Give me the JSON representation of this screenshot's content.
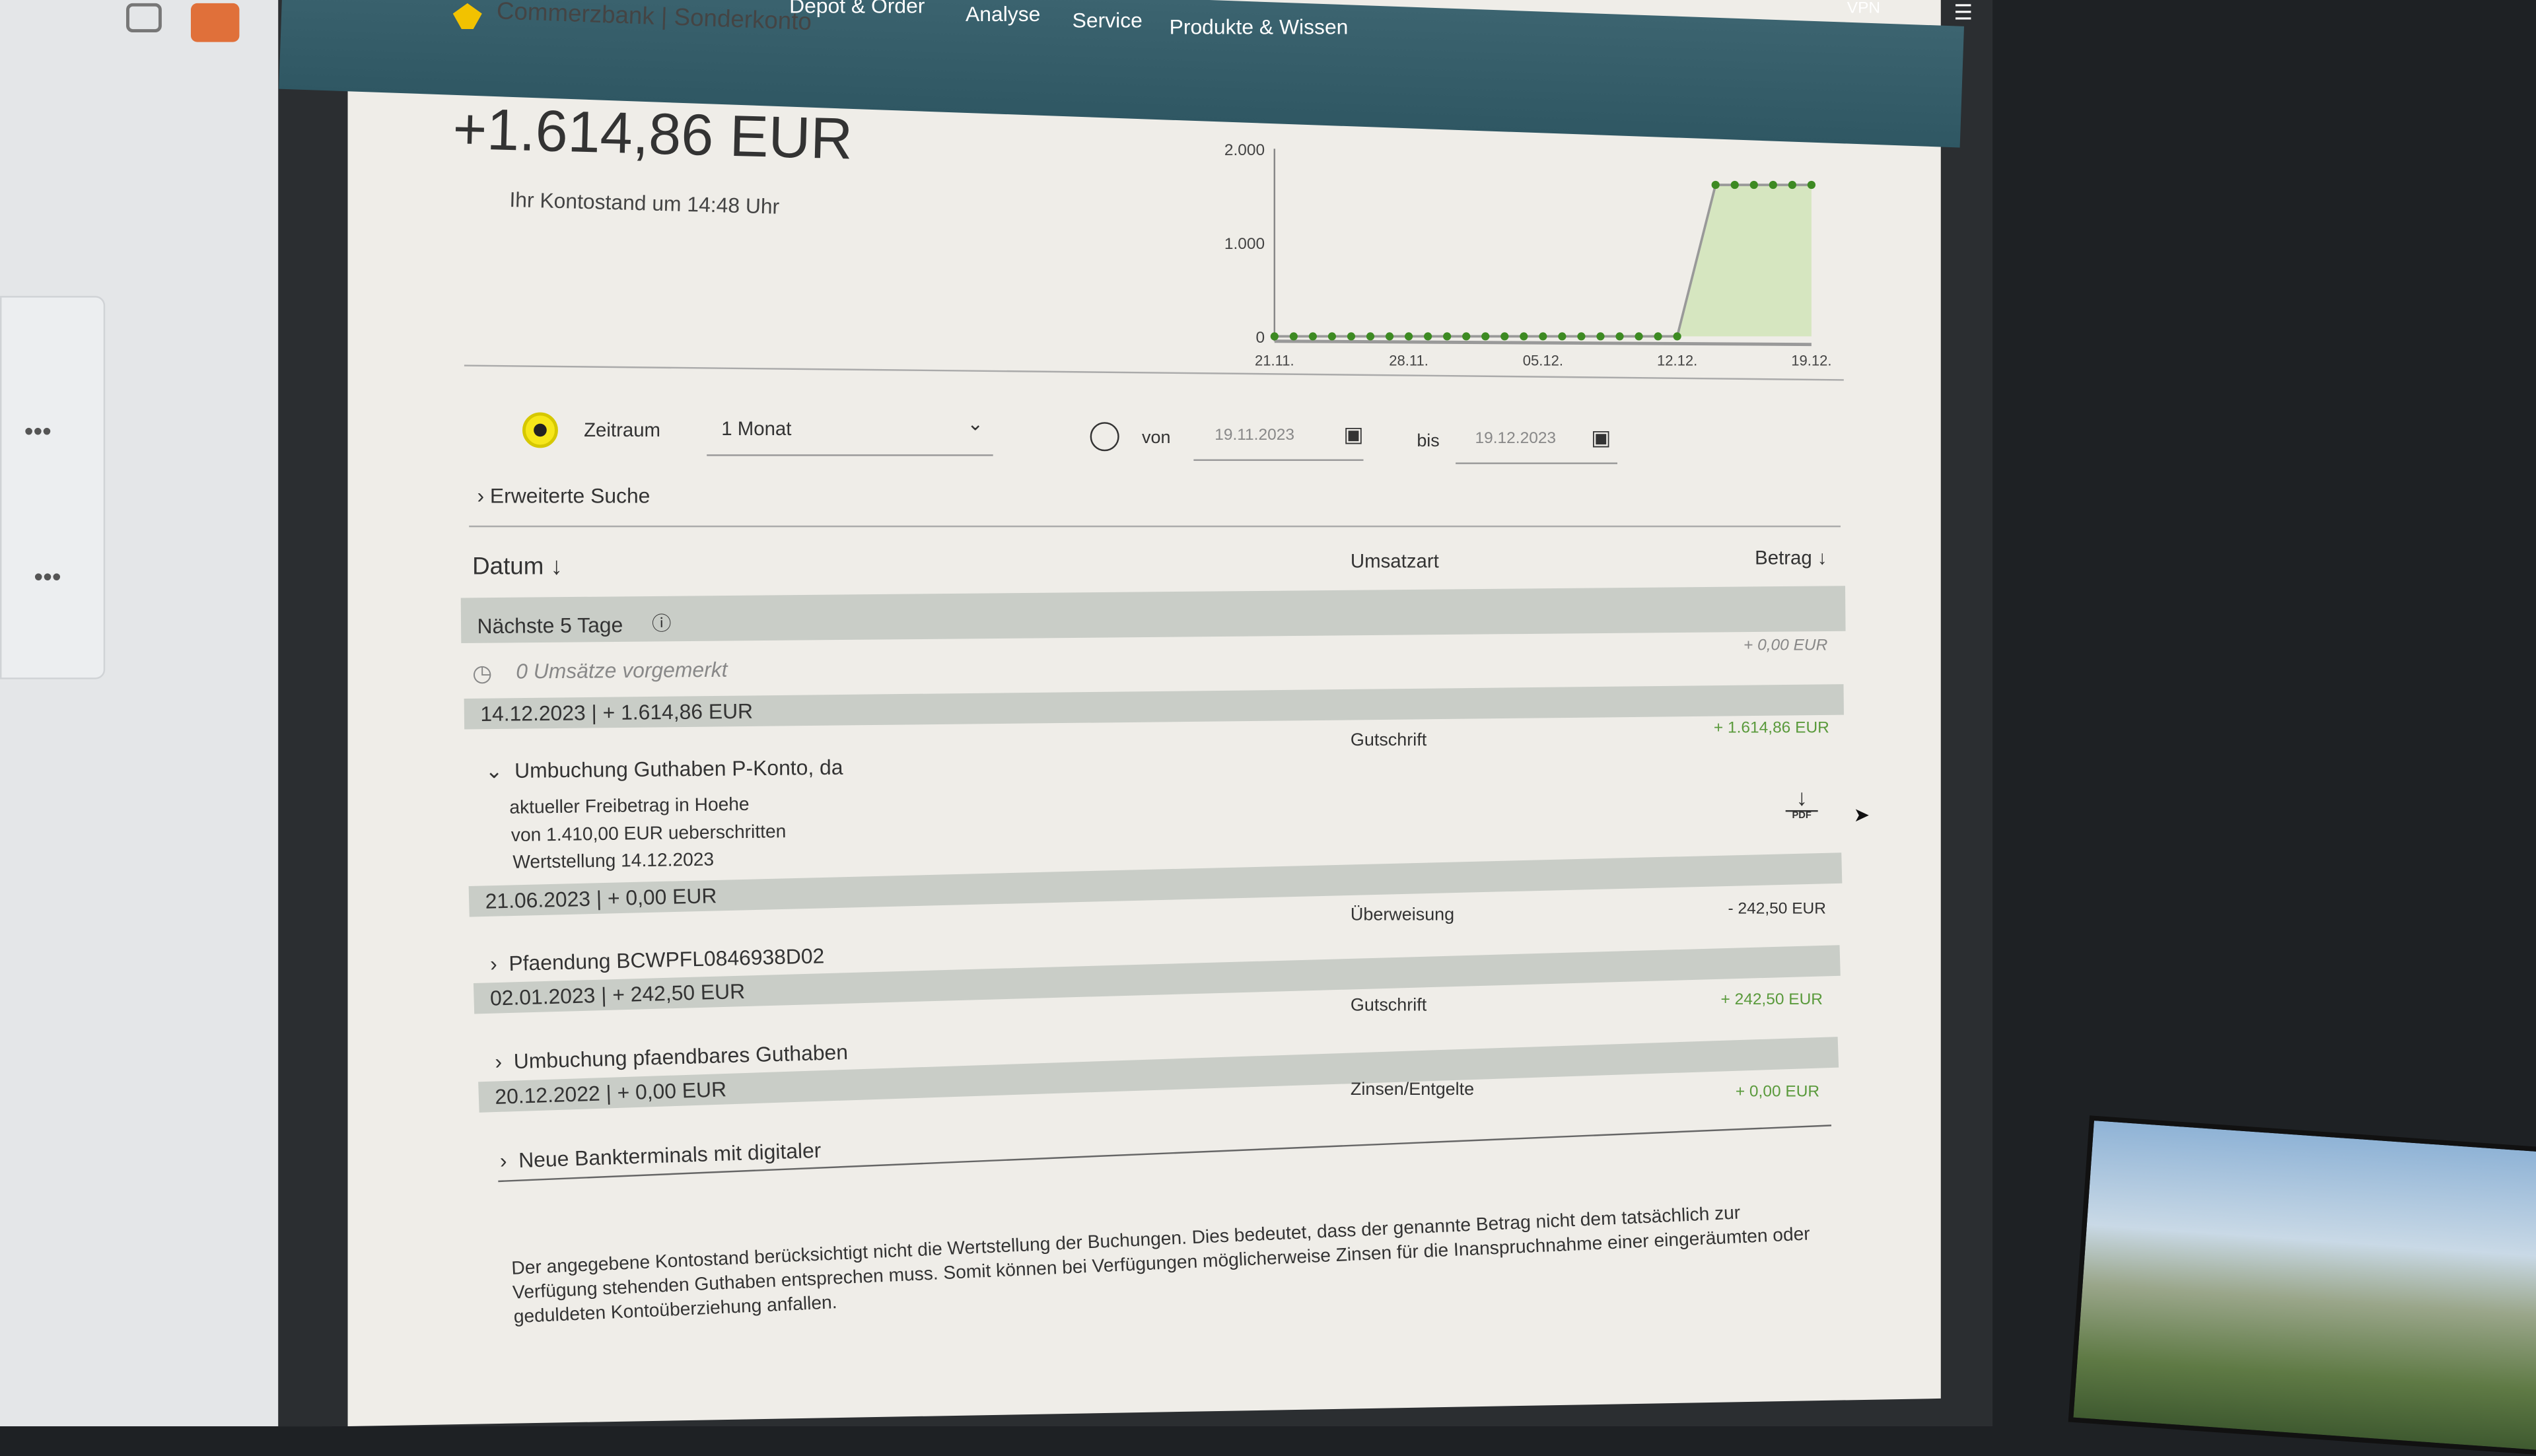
{
  "nav": {
    "brand": "Commerzbank | Sonderkonto",
    "items": [
      "Depot & Order",
      "Analyse",
      "Service",
      "Produkte & Wissen"
    ],
    "vpn": "VPN"
  },
  "balance": {
    "amount": "+1.614,86 EUR",
    "caption": "Ihr Kontostand um 14:48 Uhr"
  },
  "chart_data": {
    "type": "area",
    "y_ticks": [
      "2.000",
      "1.000",
      "0"
    ],
    "x_ticks": [
      "21.11.",
      "28.11.",
      "05.12.",
      "12.12.",
      "19.12."
    ],
    "ylim": [
      0,
      2000
    ],
    "xlim": [
      "21.11.",
      "19.12."
    ],
    "grid": false,
    "color": "#3d8a22",
    "fill": "#cfe3b5",
    "points": [
      [
        "21.11.",
        0
      ],
      [
        "22.11.",
        0
      ],
      [
        "23.11.",
        0
      ],
      [
        "24.11.",
        0
      ],
      [
        "25.11.",
        0
      ],
      [
        "26.11.",
        0
      ],
      [
        "27.11.",
        0
      ],
      [
        "28.11.",
        0
      ],
      [
        "29.11.",
        0
      ],
      [
        "30.11.",
        0
      ],
      [
        "01.12.",
        0
      ],
      [
        "02.12.",
        0
      ],
      [
        "03.12.",
        0
      ],
      [
        "04.12.",
        0
      ],
      [
        "05.12.",
        0
      ],
      [
        "06.12.",
        0
      ],
      [
        "07.12.",
        0
      ],
      [
        "08.12.",
        0
      ],
      [
        "09.12.",
        0
      ],
      [
        "10.12.",
        0
      ],
      [
        "11.12.",
        0
      ],
      [
        "12.12.",
        0
      ],
      [
        "14.12.",
        1614.86
      ],
      [
        "15.12.",
        1614.86
      ],
      [
        "16.12.",
        1614.86
      ],
      [
        "17.12.",
        1614.86
      ],
      [
        "18.12.",
        1614.86
      ],
      [
        "19.12.",
        1614.86
      ]
    ]
  },
  "filter": {
    "zeitraum_label": "Zeitraum",
    "zeitraum_value": "1 Monat",
    "von_label": "von",
    "von_value": "19.11.2023",
    "bis_label": "bis",
    "bis_value": "19.12.2023",
    "advanced": "Erweiterte Suche"
  },
  "table": {
    "col_date": "Datum",
    "col_type": "Umsatzart",
    "col_amount": "Betrag",
    "upcoming": {
      "title": "Nächste 5 Tage",
      "text": "0 Umsätze vorgemerkt",
      "amount": "+ 0,00 EUR"
    },
    "groups": [
      {
        "header": "14.12.2023 | + 1.614,86 EUR",
        "title": "Umbuchung Guthaben P-Konto, da",
        "type": "Gutschrift",
        "amount": "+ 1.614,86 EUR",
        "details": [
          "aktueller Freibetrag in Hoehe",
          "von 1.410,00 EUR ueberschritten",
          "Wertstellung 14.12.2023"
        ],
        "pdf": "PDF"
      },
      {
        "header": "21.06.2023 | + 0,00 EUR",
        "title": "Pfaendung BCWPFL0846938D02",
        "type": "Überweisung",
        "amount": "- 242,50 EUR"
      },
      {
        "header": "02.01.2023 | + 242,50 EUR",
        "title": "Umbuchung pfaendbares Guthaben",
        "type": "Gutschrift",
        "amount": "+ 242,50 EUR"
      },
      {
        "header": "20.12.2022 | + 0,00 EUR",
        "title": "Neue Bankterminals mit digitaler",
        "type": "Zinsen/Entgelte",
        "amount": "+ 0,00 EUR"
      }
    ]
  },
  "footnote": "Der angegebene Kontostand berücksichtigt nicht die Wertstellung der Buchungen. Dies bedeutet, dass der genannte Betrag nicht dem tatsächlich zur Verfügung stehenden Guthaben entsprechen muss. Somit können bei Verfügungen möglicherweise Zinsen für die Inanspruchnahme einer eingeräumten oder geduldeten Kontoüberziehung anfallen."
}
